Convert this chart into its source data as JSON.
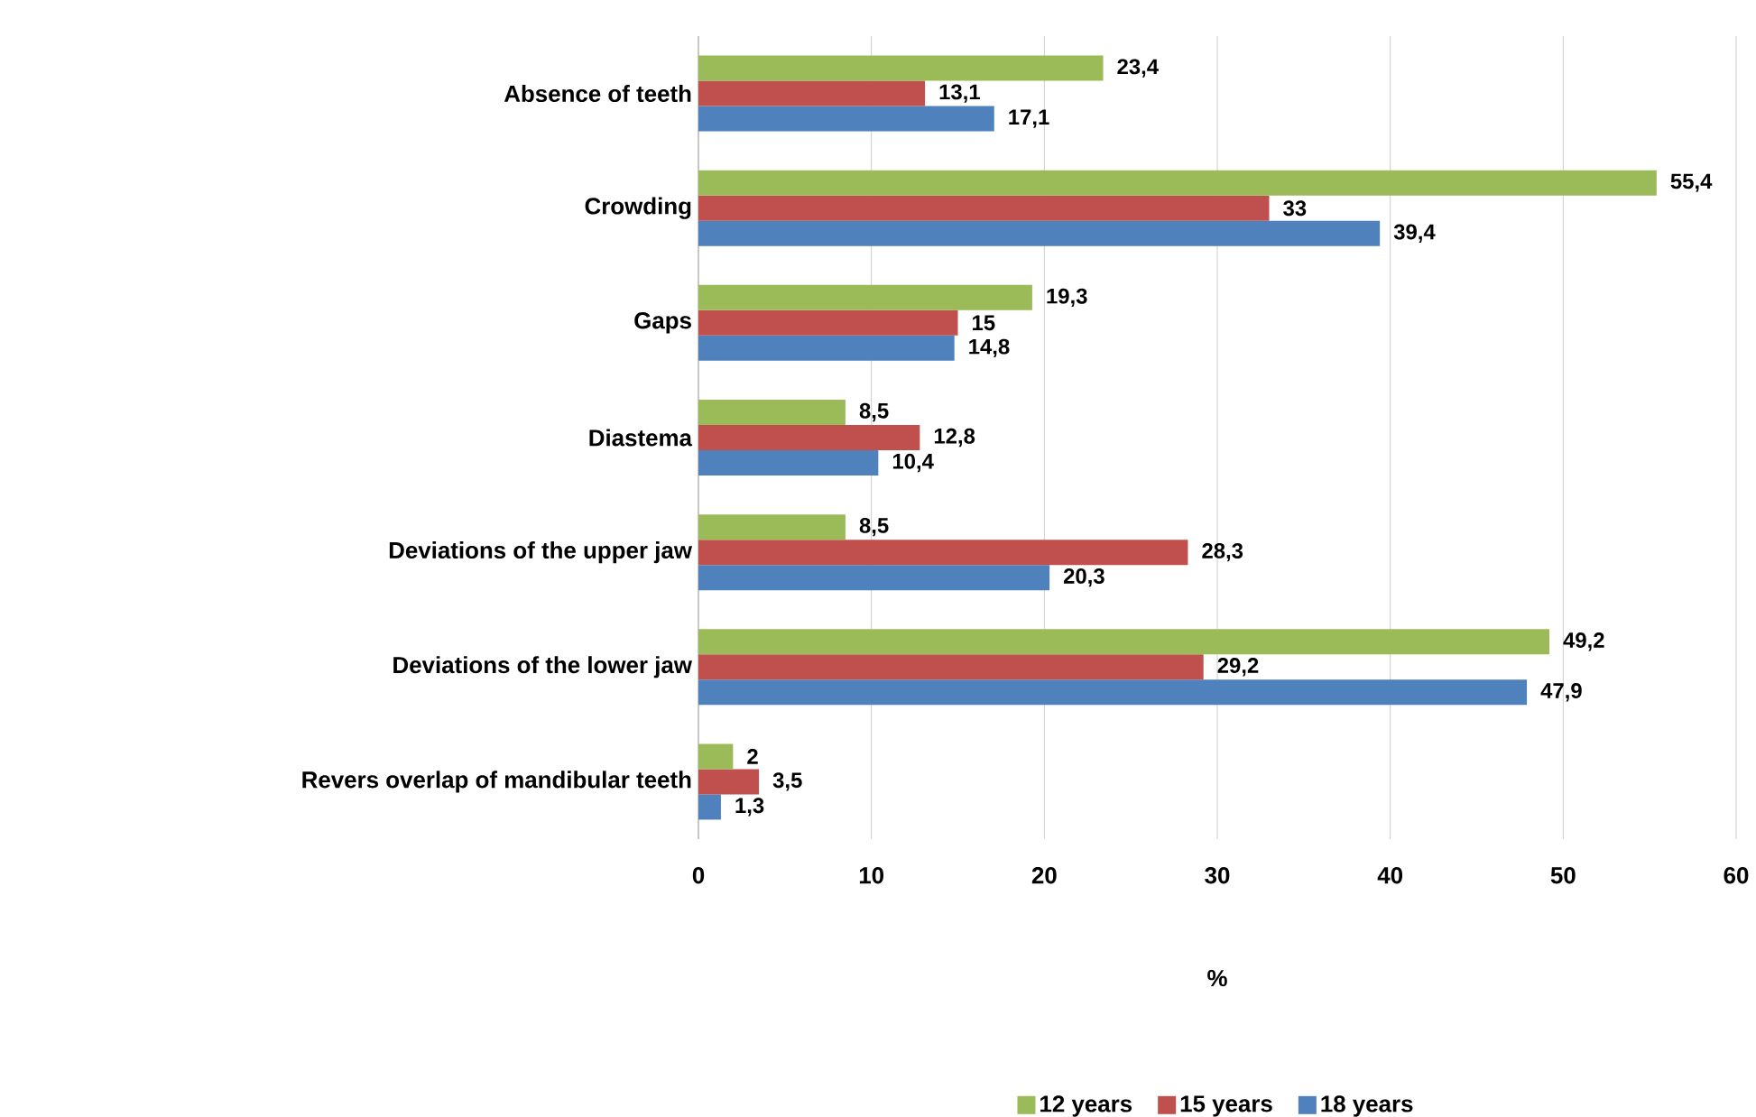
{
  "chart_data": {
    "type": "bar",
    "orientation": "horizontal",
    "categories": [
      "Absence of teeth",
      "Crowding",
      "Gaps",
      "Diastema",
      "Deviations of the upper jaw",
      "Deviations of the lower jaw",
      "Revers overlap of mandibular teeth"
    ],
    "series": [
      {
        "name": "12 years",
        "color": "#9bbb59",
        "values": [
          23.4,
          55.4,
          19.3,
          8.5,
          8.5,
          49.2,
          2
        ],
        "value_labels": [
          "23,4",
          "55,4",
          "19,3",
          "8,5",
          "8,5",
          "49,2",
          "2"
        ]
      },
      {
        "name": "15 years",
        "color": "#c0504d",
        "values": [
          13.1,
          33,
          15,
          12.8,
          28.3,
          29.2,
          3.5
        ],
        "value_labels": [
          "13,1",
          "33",
          "15",
          "12,8",
          "28,3",
          "29,2",
          "3,5"
        ]
      },
      {
        "name": "18 years",
        "color": "#4f81bd",
        "values": [
          17.1,
          39.4,
          14.8,
          10.4,
          20.3,
          47.9,
          1.3
        ],
        "value_labels": [
          "17,1",
          "39,4",
          "14,8",
          "10,4",
          "20,3",
          "47,9",
          "1,3"
        ]
      }
    ],
    "xlim": [
      0,
      60
    ],
    "xticks": [
      0,
      10,
      20,
      30,
      40,
      50,
      60
    ],
    "xlabel": "%",
    "grid": "x",
    "legend": "bottom"
  }
}
